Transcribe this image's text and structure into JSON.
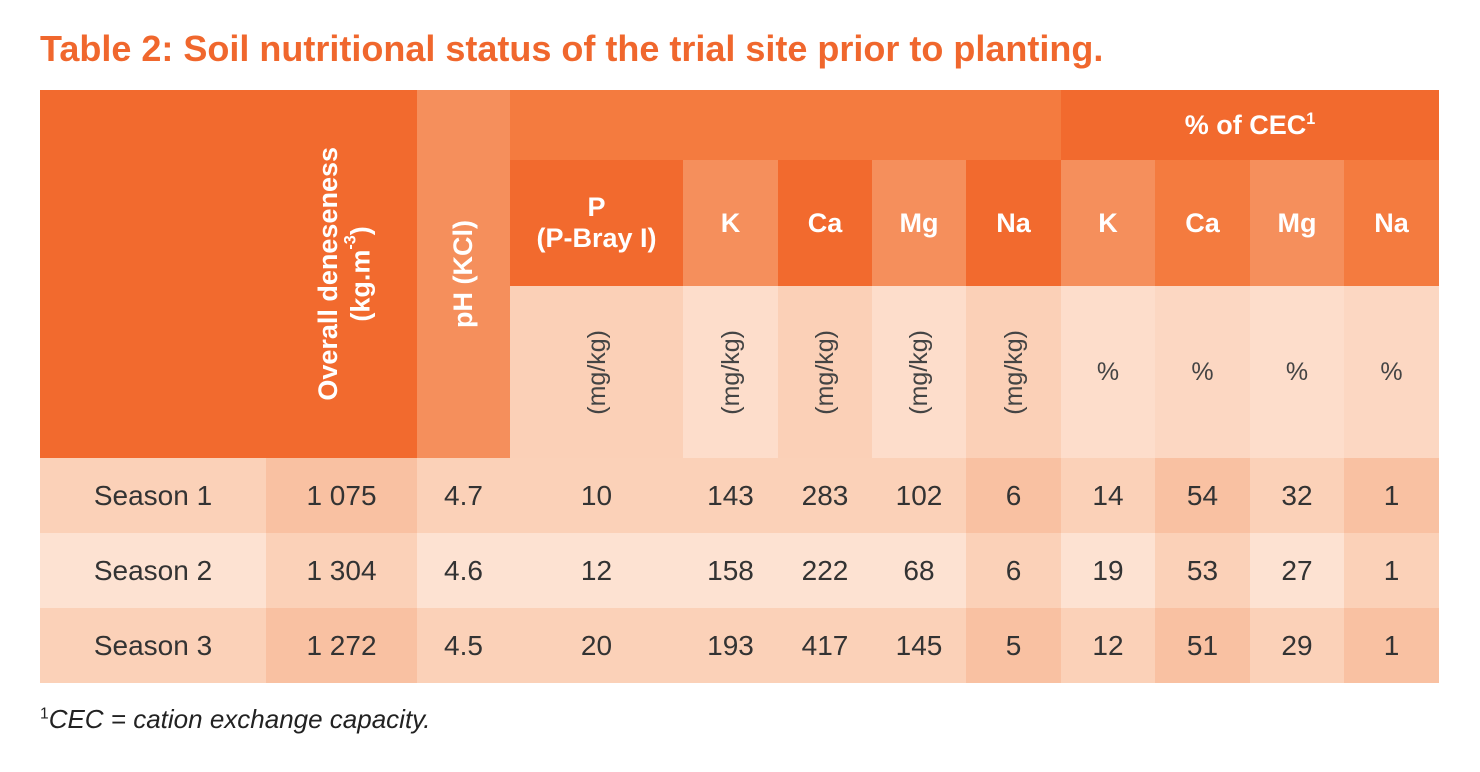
{
  "title": "Table 2: Soil nutritional status of the trial site prior to planting.",
  "headers": {
    "density": "Overall deneseness",
    "density_unit": "(kg.m",
    "density_unit_sup": "-3",
    "density_unit_close": ")",
    "ph": "pH (KCl)",
    "cec_group": "% of CEC",
    "cec_sup": "1",
    "p_line1": "P",
    "p_line2": "(P-Bray I)",
    "k": "K",
    "ca": "Ca",
    "mg": "Mg",
    "na": "Na",
    "cec_k": "K",
    "cec_ca": "Ca",
    "cec_mg": "Mg",
    "cec_na": "Na"
  },
  "units": {
    "p": "(mg/kg)",
    "k": "(mg/kg)",
    "ca": "(mg/kg)",
    "mg": "(mg/kg)",
    "na": "(mg/kg)",
    "cec_k": "%",
    "cec_ca": "%",
    "cec_mg": "%",
    "cec_na": "%"
  },
  "rows": [
    {
      "label": "Season 1",
      "density": "1 075",
      "ph": "4.7",
      "p": "10",
      "k": "143",
      "ca": "283",
      "mg": "102",
      "na": "6",
      "cec_k": "14",
      "cec_ca": "54",
      "cec_mg": "32",
      "cec_na": "1"
    },
    {
      "label": "Season 2",
      "density": "1 304",
      "ph": "4.6",
      "p": "12",
      "k": "158",
      "ca": "222",
      "mg": "68",
      "na": "6",
      "cec_k": "19",
      "cec_ca": "53",
      "cec_mg": "27",
      "cec_na": "1"
    },
    {
      "label": "Season 3",
      "density": "1 272",
      "ph": "4.5",
      "p": "20",
      "k": "193",
      "ca": "417",
      "mg": "145",
      "na": "5",
      "cec_k": "12",
      "cec_ca": "51",
      "cec_mg": "29",
      "cec_na": "1"
    }
  ],
  "footnote": {
    "sup": "1",
    "text": "CEC = cation exchange capacity."
  },
  "colors": {
    "title": "#f0672d",
    "header_dark": "#f26a2e",
    "header_mid": "#f47b3f",
    "header_light": "#f58f5c",
    "unit_row": "#fbd0b7"
  }
}
